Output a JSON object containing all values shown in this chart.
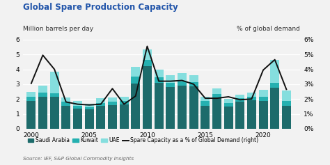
{
  "title": "Global Spare Production Capacity",
  "ylabel_left": "Million barrels per day",
  "ylabel_right": "% of global demand",
  "source": "Source: IEF, S&P Global Commodity Insights",
  "years": [
    2000,
    2001,
    2002,
    2003,
    2004,
    2005,
    2006,
    2007,
    2008,
    2009,
    2010,
    2011,
    2012,
    2013,
    2014,
    2015,
    2016,
    2017,
    2018,
    2019,
    2020,
    2021,
    2022
  ],
  "saudi_arabia": [
    1.85,
    2.15,
    2.15,
    1.55,
    1.35,
    1.3,
    1.55,
    1.6,
    1.65,
    3.05,
    4.2,
    3.1,
    2.8,
    2.9,
    2.85,
    1.55,
    2.1,
    1.5,
    1.8,
    1.9,
    1.85,
    2.75,
    1.55
  ],
  "kuwait": [
    0.3,
    0.3,
    0.25,
    0.25,
    0.2,
    0.15,
    0.2,
    0.2,
    0.2,
    0.45,
    0.45,
    0.35,
    0.3,
    0.3,
    0.3,
    0.3,
    0.25,
    0.25,
    0.25,
    0.25,
    0.3,
    0.35,
    0.3
  ],
  "uae": [
    0.35,
    0.45,
    1.45,
    0.3,
    0.3,
    0.25,
    0.3,
    0.3,
    0.3,
    0.65,
    0.7,
    0.55,
    0.5,
    0.55,
    0.45,
    0.3,
    0.35,
    0.25,
    0.25,
    0.3,
    0.45,
    1.55,
    0.7
  ],
  "spare_pct": [
    3.05,
    4.95,
    4.0,
    1.8,
    1.65,
    1.6,
    1.65,
    2.7,
    1.65,
    2.2,
    5.55,
    3.2,
    3.2,
    3.25,
    3.0,
    2.05,
    2.05,
    2.15,
    1.95,
    2.0,
    3.95,
    4.65,
    2.65
  ],
  "ylim_left": [
    0,
    6
  ],
  "ylim_right": [
    0,
    6
  ],
  "color_saudi": "#1d6b6b",
  "color_kuwait": "#25b0b0",
  "color_uae": "#85dede",
  "color_line": "#111111",
  "background_color": "#f2f2f2",
  "grid_color": "#ffffff",
  "title_color": "#2255aa"
}
